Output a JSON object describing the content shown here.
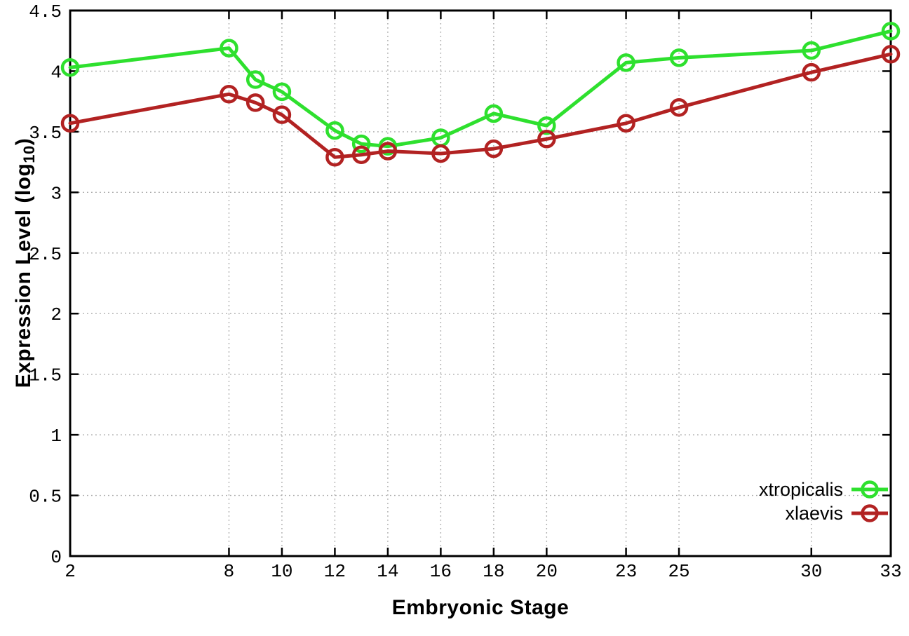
{
  "chart_data": {
    "type": "line",
    "title": "",
    "xlabel": "Embryonic Stage",
    "ylabel": {
      "text": "Expression Level (log",
      "sub": "10",
      "close": ")"
    },
    "x": [
      2,
      8,
      9,
      10,
      12,
      13,
      14,
      16,
      18,
      20,
      23,
      25,
      30,
      33
    ],
    "series": [
      {
        "name": "xtropicalis",
        "color": "#2ee02e",
        "values": [
          4.03,
          4.19,
          3.93,
          3.83,
          3.51,
          3.4,
          3.38,
          3.45,
          3.65,
          3.55,
          4.07,
          4.11,
          4.17,
          4.33
        ]
      },
      {
        "name": "xlaevis",
        "color": "#b22222",
        "values": [
          3.57,
          3.81,
          3.74,
          3.64,
          3.29,
          3.31,
          3.34,
          3.32,
          3.36,
          3.44,
          3.57,
          3.7,
          3.99,
          4.14
        ]
      }
    ],
    "x_ticks": [
      2,
      8,
      10,
      12,
      14,
      16,
      18,
      20,
      23,
      25,
      30,
      33
    ],
    "x_tick_labels": [
      "2",
      "8",
      "10",
      "12",
      "14",
      "16",
      "18",
      "20",
      "23",
      "25",
      "30",
      "33"
    ],
    "y_ticks": [
      0,
      0.5,
      1,
      1.5,
      2,
      2.5,
      3,
      3.5,
      4,
      4.5
    ],
    "y_tick_labels": [
      "0",
      "0.5",
      "1",
      "1.5",
      "2",
      "2.5",
      "3",
      "3.5",
      "4",
      "4.5"
    ],
    "xlim": [
      2,
      33
    ],
    "ylim": [
      0,
      4.5
    ],
    "grid": true,
    "legend_position": "bottom-right",
    "axis_color": "#000000",
    "grid_color": "#a8a8a8",
    "marker": "open-circle"
  }
}
